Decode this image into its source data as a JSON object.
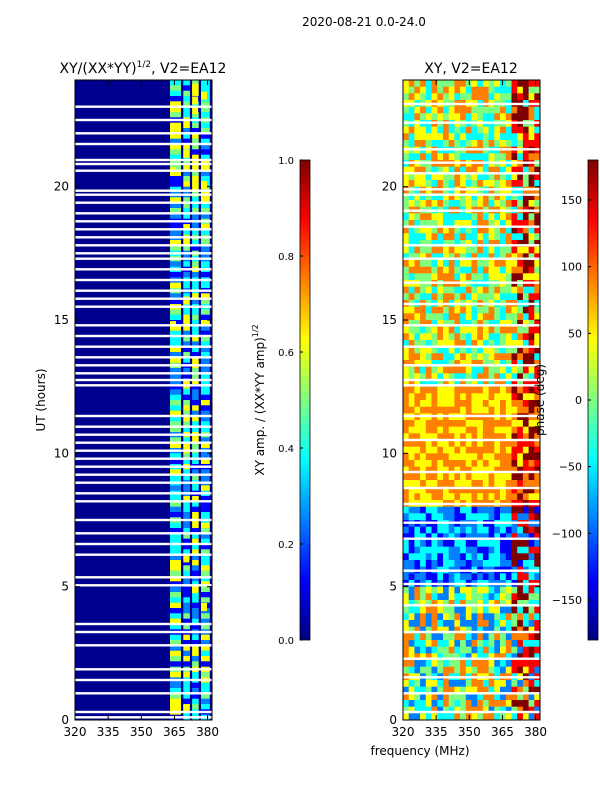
{
  "suptitle": "2020-08-21 0.0-24.0",
  "xlabel": "frequency (MHz)",
  "colors": {
    "white_gap": "#ffffff",
    "background_low": "#00008f",
    "jet": [
      "#00007f",
      "#0000ff",
      "#007fff",
      "#00ffff",
      "#7fff7f",
      "#ffff00",
      "#ff7f00",
      "#ff0000",
      "#7f0000"
    ]
  },
  "chart_data": [
    {
      "type": "heatmap",
      "title_prefix": "XY/(XX*YY)",
      "title_exp": "1/2",
      "title_suffix": ", V2=EA12",
      "xlabel": "",
      "ylabel": "UT (hours)",
      "xlim": [
        320,
        382
      ],
      "ylim": [
        0,
        24
      ],
      "xticks": [
        320,
        335,
        350,
        365,
        380
      ],
      "yticks": [
        0,
        5,
        10,
        15,
        20
      ],
      "colorbar": {
        "label_prefix": "XY amp. / (XX*YY amp)",
        "label_exp": "1/2",
        "range": [
          0.0,
          1.0
        ],
        "ticks": [
          "0.0",
          "0.2",
          "0.4",
          "0.6",
          "0.8",
          "1.0"
        ],
        "tick_values": [
          0.0,
          0.2,
          0.4,
          0.6,
          0.8,
          1.0
        ]
      },
      "gaps_ut": [
        0.1,
        0.3,
        1.0,
        1.5,
        1.9,
        2.8,
        3.3,
        3.6,
        5.05,
        5.35,
        6.2,
        6.6,
        7.0,
        7.5,
        8.2,
        8.5,
        8.9,
        9.2,
        9.5,
        9.8,
        10.1,
        10.4,
        10.7,
        11.0,
        11.4,
        12.55,
        12.75,
        13.0,
        13.3,
        13.6,
        14.0,
        14.4,
        14.8,
        15.5,
        15.8,
        16.1,
        16.5,
        16.9,
        17.3,
        17.5,
        17.8,
        18.1,
        18.4,
        18.7,
        19.0,
        19.4,
        19.7,
        19.85,
        20.6,
        20.85,
        21.0,
        21.6,
        22.0,
        22.5,
        23.0
      ],
      "band_ranges_mhz": [
        [
          363,
          368
        ],
        [
          369,
          372
        ],
        [
          373,
          376
        ],
        [
          377,
          381
        ]
      ]
    },
    {
      "type": "heatmap",
      "title": "XY, V2=EA12",
      "xlabel": "frequency (MHz)",
      "ylabel": "",
      "xlim": [
        320,
        382
      ],
      "ylim": [
        0,
        24
      ],
      "xticks": [
        320,
        335,
        350,
        365,
        380
      ],
      "yticks": [
        0,
        5,
        10,
        15,
        20
      ],
      "colorbar": {
        "label": "phase (deg)",
        "range": [
          -180,
          180
        ],
        "ticks": [
          "−150",
          "−100",
          "−50",
          "0",
          "50",
          "100",
          "150"
        ],
        "tick_values": [
          -150,
          -100,
          -50,
          0,
          50,
          100,
          150
        ]
      },
      "gaps_ut": [
        0.3,
        1.0,
        1.6,
        2.3,
        3.3,
        4.3,
        5.1,
        5.6,
        6.8,
        7.4,
        8.1,
        8.7,
        9.3,
        10.5,
        11.4,
        12.55,
        12.75,
        13.3,
        14.0,
        14.8,
        15.6,
        16.4,
        17.3,
        17.8,
        18.5,
        19.1,
        19.7,
        19.9,
        20.5,
        20.9,
        21.4,
        22.4,
        23.1
      ]
    }
  ]
}
